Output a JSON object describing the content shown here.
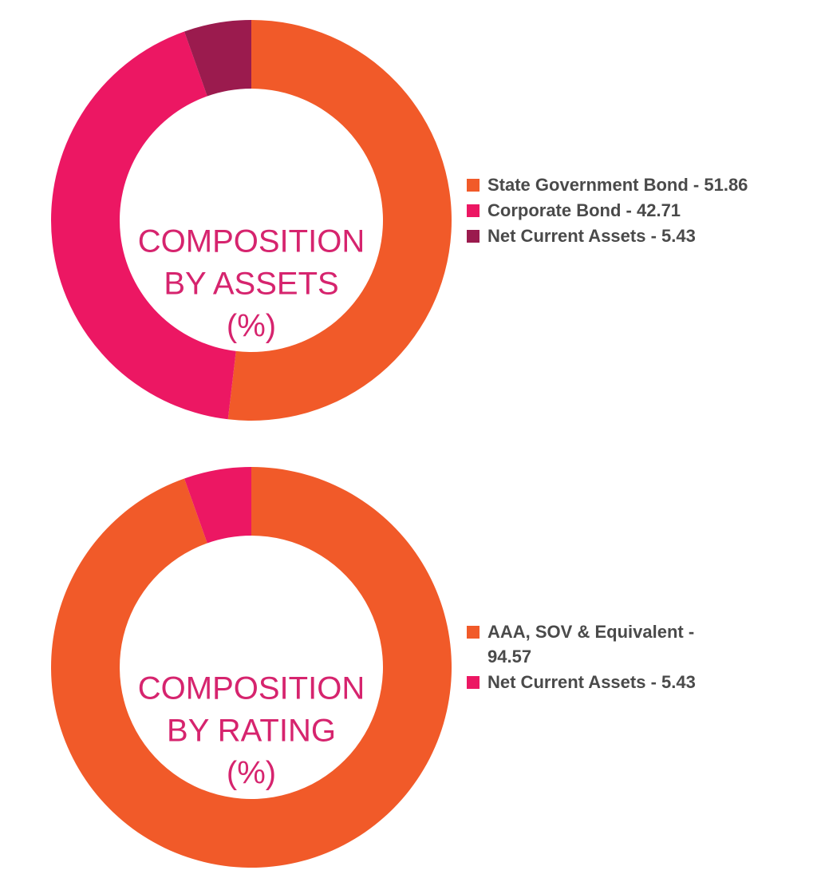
{
  "chart_data": [
    {
      "type": "donut",
      "title": [
        "COMPOSITION",
        "BY ASSETS",
        "(%)"
      ],
      "categories": [
        "State Government Bond - 51.86",
        "Corporate Bond - 42.71",
        "Net Current Assets - 5.43"
      ],
      "values": [
        51.86,
        42.71,
        5.43
      ],
      "colors": [
        "#f15a29",
        "#ec1763",
        "#9b1b4e"
      ]
    },
    {
      "type": "donut",
      "title": [
        "COMPOSITION",
        "BY RATING",
        "(%)"
      ],
      "categories": [
        "AAA, SOV & Equivalent - 94.57",
        "Net Current Assets - 5.43"
      ],
      "values": [
        94.57,
        5.43
      ],
      "colors": [
        "#f15a29",
        "#ec1763"
      ]
    }
  ]
}
